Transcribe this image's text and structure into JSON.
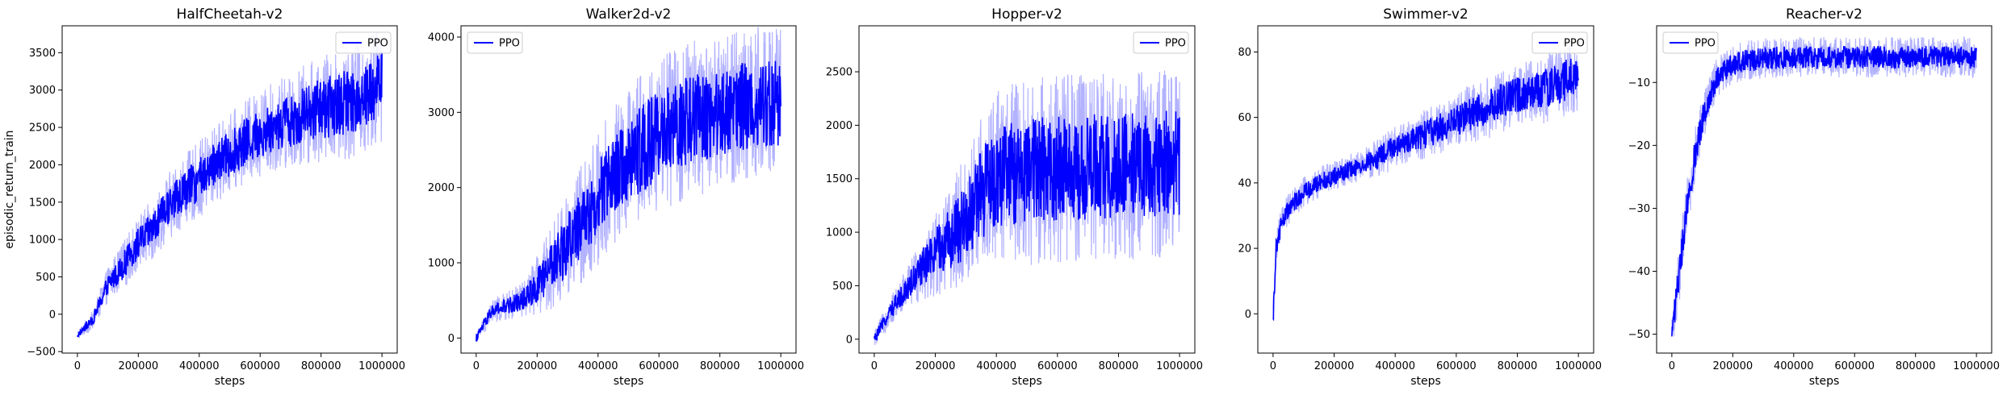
{
  "chart_data": [
    {
      "type": "line",
      "title": "HalfCheetah-v2",
      "xlabel": "steps",
      "ylabel": "episodic_return_train",
      "xlim": [
        -50000,
        1050000
      ],
      "ylim": [
        -520,
        3860
      ],
      "xticks": [
        0,
        200000,
        400000,
        600000,
        800000,
        1000000
      ],
      "xtick_labels": [
        "0",
        "200000",
        "400000",
        "600000",
        "800000",
        "1000000"
      ],
      "yticks": [
        -500,
        0,
        500,
        1000,
        1500,
        2000,
        2500,
        3000,
        3500
      ],
      "ytick_labels": [
        "−500",
        "0",
        "500",
        "1000",
        "1500",
        "2000",
        "2500",
        "3000",
        "3500"
      ],
      "legend_position": "upper right",
      "series": [
        {
          "name": "PPO",
          "color": "#0000ff",
          "x": [
            0,
            50000,
            100000,
            150000,
            200000,
            250000,
            300000,
            350000,
            400000,
            450000,
            500000,
            550000,
            600000,
            650000,
            700000,
            750000,
            800000,
            850000,
            900000,
            950000,
            1000000
          ],
          "y": [
            -280,
            -80,
            400,
            650,
            950,
            1150,
            1450,
            1650,
            1800,
            2000,
            2150,
            2300,
            2420,
            2520,
            2600,
            2680,
            2750,
            2800,
            2850,
            2950,
            3100
          ],
          "spread": [
            40,
            80,
            150,
            200,
            230,
            260,
            280,
            300,
            320,
            330,
            340,
            350,
            360,
            380,
            400,
            420,
            450,
            470,
            480,
            500,
            500
          ]
        }
      ]
    },
    {
      "type": "line",
      "title": "Walker2d-v2",
      "xlabel": "steps",
      "ylabel": "",
      "xlim": [
        -50000,
        1050000
      ],
      "ylim": [
        -200,
        4150
      ],
      "xticks": [
        0,
        200000,
        400000,
        600000,
        800000,
        1000000
      ],
      "xtick_labels": [
        "0",
        "200000",
        "400000",
        "600000",
        "800000",
        "1000000"
      ],
      "yticks": [
        0,
        1000,
        2000,
        3000,
        4000
      ],
      "ytick_labels": [
        "0",
        "1000",
        "2000",
        "3000",
        "4000"
      ],
      "legend_position": "upper left",
      "series": [
        {
          "name": "PPO",
          "color": "#0000ff",
          "x": [
            0,
            50000,
            100000,
            150000,
            200000,
            250000,
            300000,
            350000,
            400000,
            450000,
            500000,
            550000,
            600000,
            650000,
            700000,
            750000,
            800000,
            850000,
            900000,
            950000,
            1000000
          ],
          "y": [
            0,
            350,
            420,
            500,
            700,
            950,
            1250,
            1550,
            1850,
            2150,
            2350,
            2550,
            2700,
            2800,
            2900,
            2950,
            3000,
            3050,
            3100,
            3100,
            3150
          ],
          "spread": [
            50,
            100,
            120,
            150,
            250,
            350,
            450,
            500,
            550,
            600,
            600,
            650,
            650,
            650,
            650,
            650,
            650,
            650,
            650,
            650,
            650
          ]
        }
      ]
    },
    {
      "type": "line",
      "title": "Hopper-v2",
      "xlabel": "steps",
      "ylabel": "",
      "xlim": [
        -50000,
        1050000
      ],
      "ylim": [
        -130,
        2930
      ],
      "xticks": [
        0,
        200000,
        400000,
        600000,
        800000,
        1000000
      ],
      "xtick_labels": [
        "0",
        "200000",
        "400000",
        "600000",
        "800000",
        "1000000"
      ],
      "yticks": [
        0,
        500,
        1000,
        1500,
        2000,
        2500
      ],
      "ytick_labels": [
        "0",
        "500",
        "1000",
        "1500",
        "2000",
        "2500"
      ],
      "legend_position": "upper right",
      "series": [
        {
          "name": "PPO",
          "color": "#0000ff",
          "x": [
            0,
            50000,
            100000,
            150000,
            200000,
            250000,
            300000,
            350000,
            400000,
            450000,
            500000,
            550000,
            600000,
            650000,
            700000,
            750000,
            800000,
            850000,
            900000,
            950000,
            1000000
          ],
          "y": [
            0,
            250,
            450,
            650,
            800,
            950,
            1100,
            1350,
            1500,
            1550,
            1550,
            1600,
            1600,
            1600,
            1600,
            1620,
            1620,
            1620,
            1630,
            1640,
            1650
          ],
          "spread": [
            50,
            80,
            120,
            180,
            250,
            320,
            400,
            480,
            520,
            540,
            550,
            550,
            550,
            550,
            550,
            550,
            550,
            550,
            550,
            550,
            550
          ]
        }
      ]
    },
    {
      "type": "line",
      "title": "Swimmer-v2",
      "xlabel": "steps",
      "ylabel": "",
      "xlim": [
        -50000,
        1050000
      ],
      "ylim": [
        -12,
        88
      ],
      "xticks": [
        0,
        200000,
        400000,
        600000,
        800000,
        1000000
      ],
      "xtick_labels": [
        "0",
        "200000",
        "400000",
        "600000",
        "800000",
        "1000000"
      ],
      "yticks": [
        0,
        20,
        40,
        60,
        80
      ],
      "ytick_labels": [
        "0",
        "20",
        "40",
        "60",
        "80"
      ],
      "legend_position": "upper right",
      "series": [
        {
          "name": "PPO",
          "color": "#0000ff",
          "x": [
            0,
            10000,
            25000,
            50000,
            100000,
            150000,
            200000,
            250000,
            300000,
            350000,
            400000,
            450000,
            500000,
            550000,
            600000,
            650000,
            700000,
            750000,
            800000,
            850000,
            900000,
            950000,
            1000000
          ],
          "y": [
            -2,
            20,
            27,
            32,
            37,
            40,
            42,
            44,
            46,
            48,
            51,
            53,
            55,
            57,
            59,
            61,
            63,
            65,
            67,
            68,
            69,
            71,
            73
          ],
          "spread": [
            3,
            3,
            3,
            3,
            3,
            3,
            3,
            3,
            3,
            4,
            4,
            4,
            5,
            5,
            5,
            6,
            6,
            6,
            6,
            6,
            7,
            7,
            7
          ]
        }
      ]
    },
    {
      "type": "line",
      "title": "Reacher-v2",
      "xlabel": "steps",
      "ylabel": "",
      "xlim": [
        -50000,
        1050000
      ],
      "ylim": [
        -53,
        -1
      ],
      "xticks": [
        0,
        200000,
        400000,
        600000,
        800000,
        1000000
      ],
      "xtick_labels": [
        "0",
        "200000",
        "400000",
        "600000",
        "800000",
        "1000000"
      ],
      "yticks": [
        -50,
        -40,
        -30,
        -20,
        -10
      ],
      "ytick_labels": [
        "−50",
        "−40",
        "−30",
        "−20",
        "−10"
      ],
      "legend_position": "upper left",
      "series": [
        {
          "name": "PPO",
          "color": "#0000ff",
          "x": [
            0,
            25000,
            50000,
            75000,
            100000,
            125000,
            150000,
            175000,
            200000,
            250000,
            300000,
            400000,
            500000,
            600000,
            700000,
            800000,
            900000,
            1000000
          ],
          "y": [
            -50,
            -40,
            -30,
            -22,
            -16,
            -12,
            -9,
            -8,
            -7,
            -6.5,
            -6.2,
            -6,
            -6,
            -6,
            -6,
            -6,
            -6,
            -6
          ],
          "spread": [
            2,
            3,
            3,
            3,
            2.5,
            2,
            2,
            2,
            2,
            2,
            2,
            2,
            2,
            2,
            2,
            2,
            2,
            2
          ]
        }
      ]
    }
  ]
}
